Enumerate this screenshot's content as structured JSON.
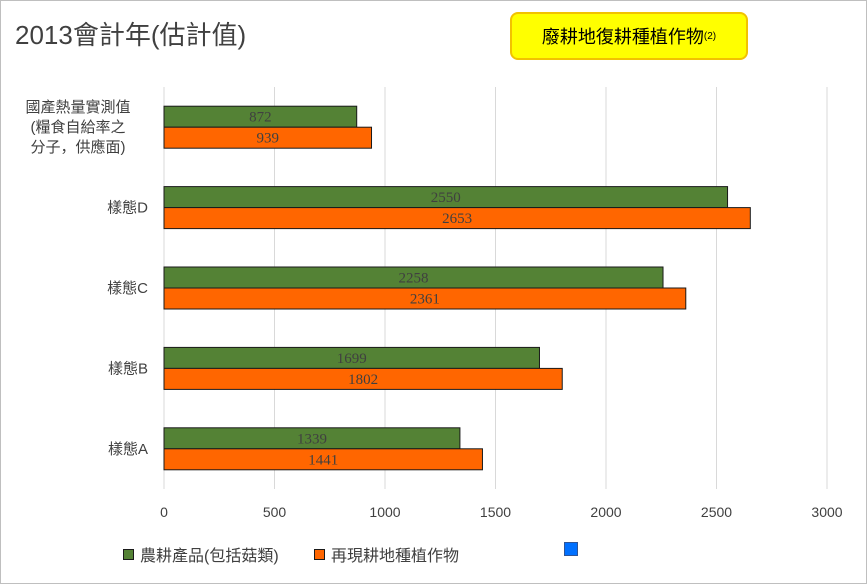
{
  "chart_data": {
    "type": "bar",
    "orientation": "horizontal",
    "title": "2013會計年(估計值)",
    "categories": [
      [
        "國產熱量實測值",
        "(糧食自給率之",
        "分子，供應面)"
      ],
      [
        "樣態D"
      ],
      [
        "樣態C"
      ],
      [
        "樣態B"
      ],
      [
        "樣態A"
      ]
    ],
    "series": [
      {
        "name": "農耕產品(包括菇類)",
        "color": "#548235",
        "values": [
          872,
          2550,
          2258,
          1699,
          1339
        ]
      },
      {
        "name": "再現耕地種植作物",
        "color": "#ff6600",
        "values": [
          939,
          2653,
          2361,
          1802,
          1441
        ]
      }
    ],
    "extra_legend_color": "#0070ff",
    "xlim": [
      0,
      3000
    ],
    "xticks": [
      "0",
      "500",
      "1000",
      "1500",
      "2000",
      "2500",
      "3000"
    ],
    "grid": true,
    "legend_position": "bottom"
  },
  "callout": {
    "text": "廢耕地復耕種植作物",
    "sup": "(2)",
    "bg": "#ffff00",
    "border": "#f2c200"
  }
}
